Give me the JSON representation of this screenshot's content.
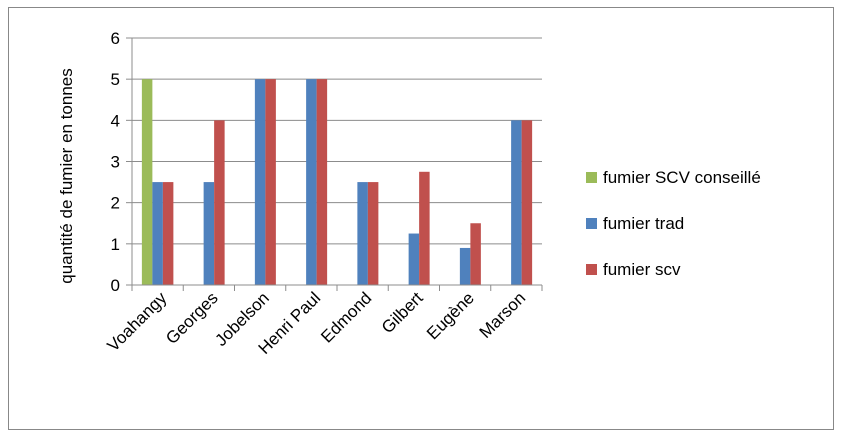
{
  "chart_data": {
    "type": "bar",
    "title": "",
    "xlabel": "",
    "ylabel": "quantité de fumier en tonnes",
    "ylim": [
      0,
      6
    ],
    "yticks": [
      0,
      1,
      2,
      3,
      4,
      5,
      6
    ],
    "grid": true,
    "legend_position": "right",
    "categories": [
      "Voahangy",
      "Georges",
      "Jobelson",
      "Henri Paul",
      "Edmond",
      "Gilbert",
      "Eugène",
      "Marson"
    ],
    "series": [
      {
        "name": "fumier SCV conseillé",
        "color": "#9BBB59",
        "values": [
          5,
          0,
          0,
          0,
          0,
          0,
          0,
          0
        ]
      },
      {
        "name": "fumier trad",
        "color": "#4F81BD",
        "values": [
          2.5,
          2.5,
          5,
          5,
          2.5,
          1.25,
          0.9,
          4
        ]
      },
      {
        "name": "fumier scv",
        "color": "#C0504D",
        "values": [
          2.5,
          4,
          5,
          5,
          2.5,
          2.75,
          1.5,
          4
        ]
      }
    ]
  }
}
